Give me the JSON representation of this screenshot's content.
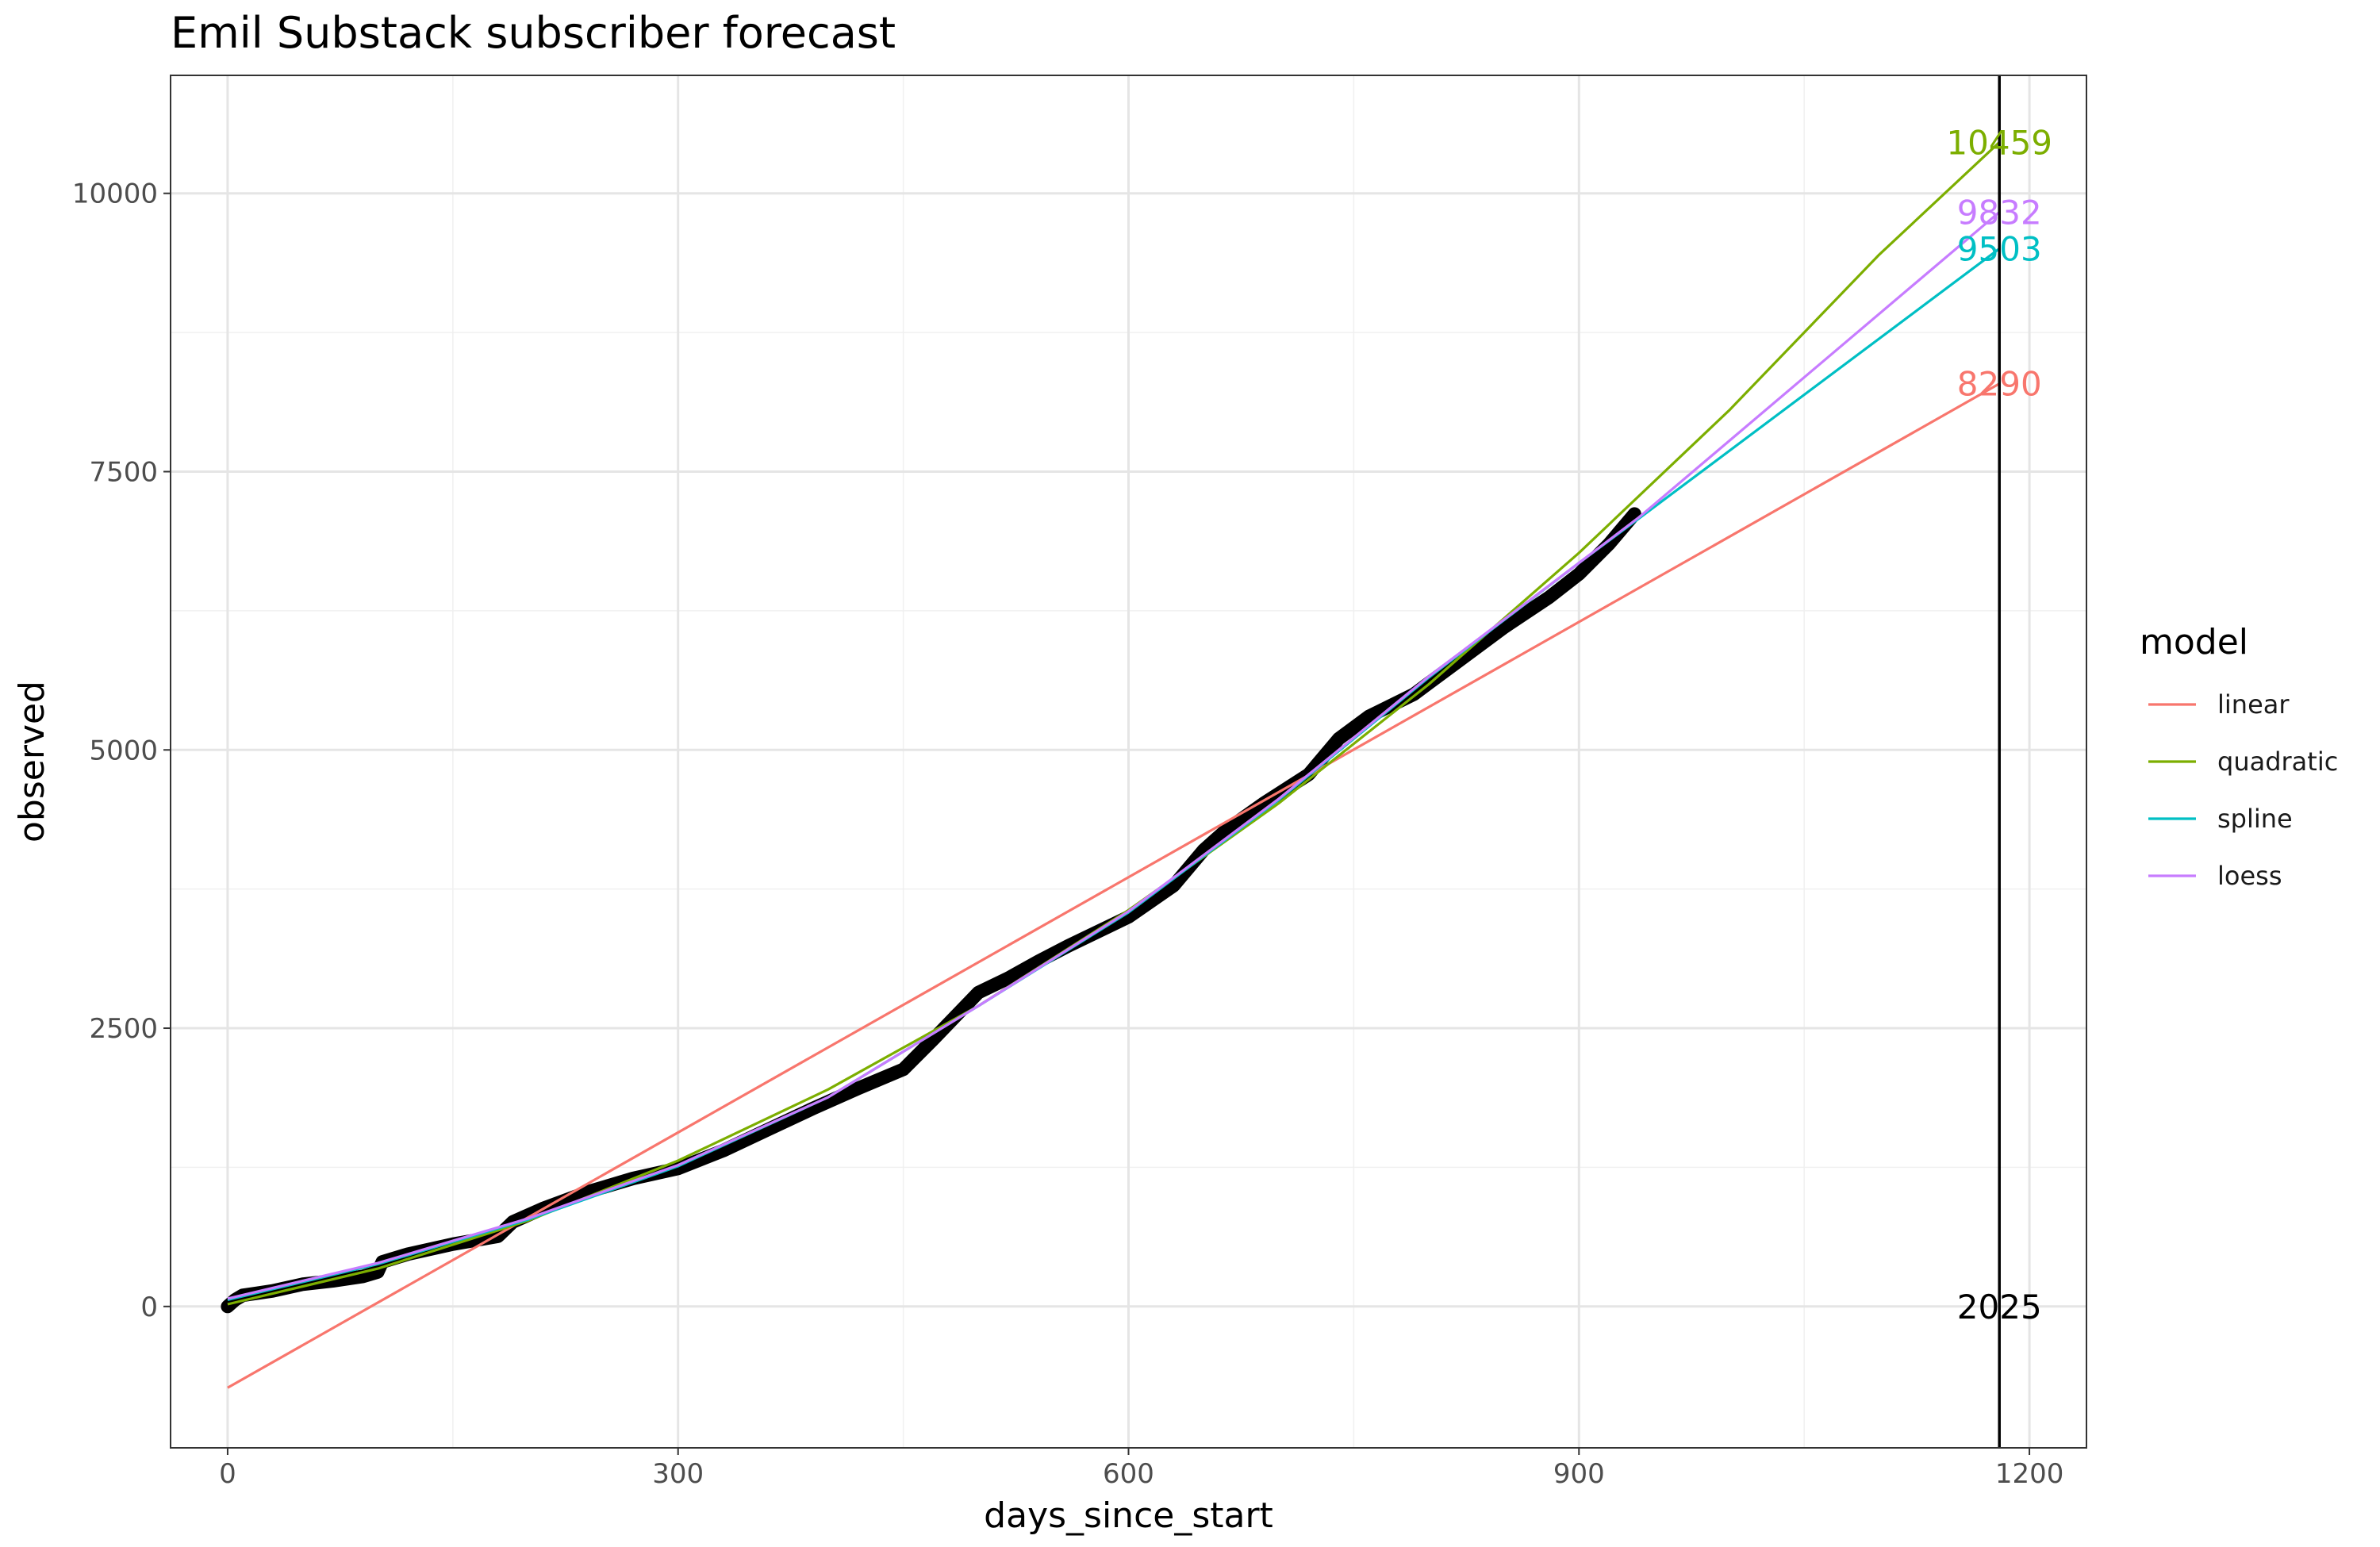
{
  "chart_data": {
    "type": "line",
    "title": "Emil Substack subscriber forecast",
    "xlabel": "days_since_start",
    "ylabel": "observed",
    "xlim": [
      -38,
      1238
    ],
    "ylim": [
      -1270,
      11060
    ],
    "x_ticks": [
      0,
      300,
      600,
      900,
      1200
    ],
    "y_ticks": [
      0,
      2500,
      5000,
      7500,
      10000
    ],
    "x_tick_labels": [
      "0",
      "300",
      "600",
      "900",
      "1200"
    ],
    "y_tick_labels": [
      "0",
      "2500",
      "5000",
      "7500",
      "10000"
    ],
    "grid": true,
    "legend": {
      "title": "model",
      "placement": "right"
    },
    "observed": {
      "x": [
        0,
        5,
        10,
        20,
        30,
        50,
        70,
        90,
        100,
        103,
        120,
        150,
        180,
        190,
        210,
        240,
        270,
        300,
        330,
        360,
        390,
        420,
        450,
        470,
        490,
        500,
        520,
        540,
        560,
        600,
        630,
        650,
        665,
        690,
        720,
        740,
        760,
        790,
        800,
        820,
        850,
        880,
        900,
        920,
        937
      ],
      "y": [
        0,
        60,
        100,
        120,
        140,
        200,
        230,
        270,
        310,
        400,
        470,
        560,
        630,
        760,
        880,
        1030,
        1150,
        1240,
        1400,
        1590,
        1780,
        1960,
        2130,
        2400,
        2680,
        2820,
        2950,
        3100,
        3240,
        3500,
        3780,
        4100,
        4280,
        4520,
        4780,
        5100,
        5300,
        5500,
        5600,
        5800,
        6100,
        6370,
        6580,
        6850,
        7120
      ]
    },
    "series": [
      {
        "name": "linear",
        "color": "#F8766D",
        "x": [
          0,
          1180
        ],
        "y": [
          -730,
          8290
        ],
        "end_label": "8290"
      },
      {
        "name": "quadratic",
        "color": "#7CAE00",
        "x": [
          0,
          100,
          200,
          300,
          400,
          500,
          600,
          700,
          800,
          900,
          1000,
          1100,
          1180
        ],
        "y": [
          20,
          340,
          770,
          1310,
          1950,
          2700,
          3560,
          4520,
          5590,
          6770,
          8050,
          9450,
          10459
        ],
        "end_label": "10459"
      },
      {
        "name": "spline",
        "color": "#00BFC4",
        "x": [
          0,
          100,
          200,
          300,
          400,
          500,
          600,
          700,
          800,
          900,
          940,
          1180
        ],
        "y": [
          60,
          380,
          780,
          1260,
          1880,
          2700,
          3540,
          4550,
          5650,
          6680,
          7080,
          9503
        ],
        "end_label": "9503"
      },
      {
        "name": "loess",
        "color": "#C77CFF",
        "x": [
          0,
          100,
          200,
          300,
          400,
          500,
          600,
          700,
          800,
          900,
          940,
          1180
        ],
        "y": [
          70,
          390,
          790,
          1270,
          1880,
          2700,
          3550,
          4560,
          5660,
          6680,
          7090,
          9832
        ],
        "end_label": "9832"
      }
    ],
    "vline": {
      "x": 1180,
      "label": "2025",
      "label_y": 0
    }
  }
}
